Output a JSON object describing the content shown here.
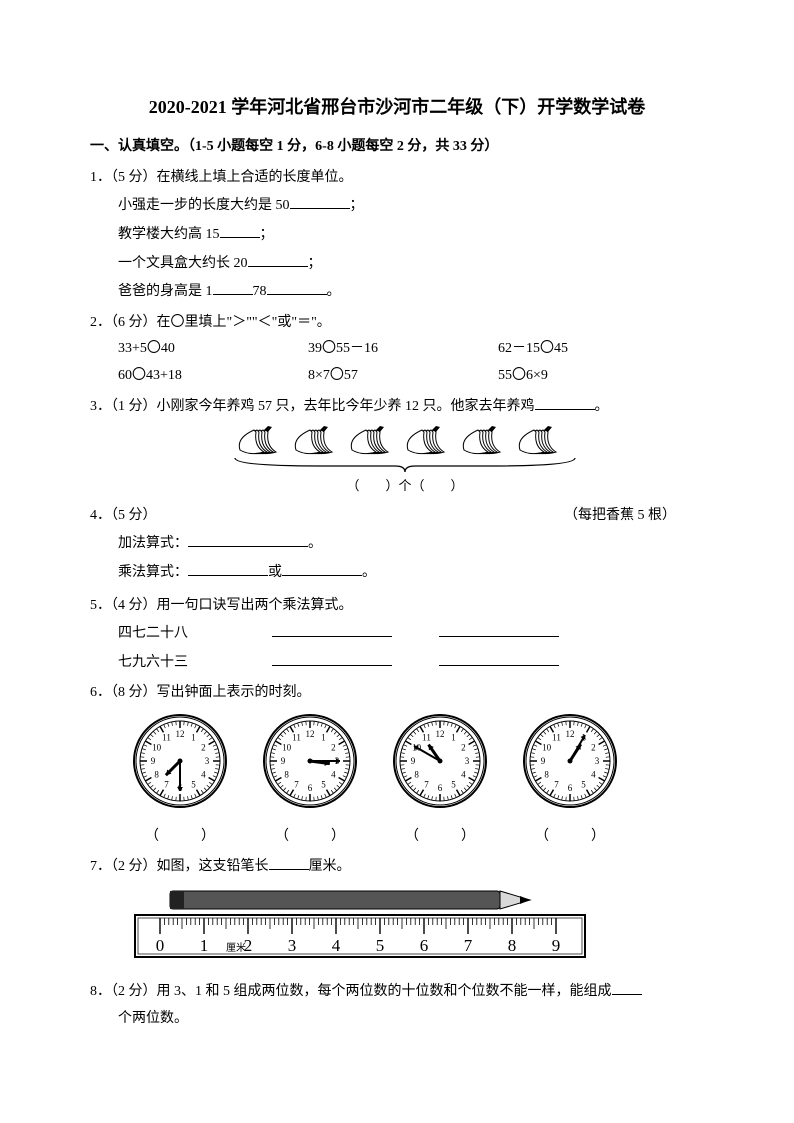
{
  "title": "2020-2021 学年河北省邢台市沙河市二年级（下）开学数学试卷",
  "section1": "一、认真填空。（1-5 小题每空 1 分，6-8 小题每空 2 分，共 33 分）",
  "q1": {
    "head": "1．（5 分）在横线上填上合适的长度单位。",
    "l1a": "小强走一步的长度大约是 50",
    "l1b": "；",
    "l2a": "教学楼大约高 15",
    "l2b": "；",
    "l3a": "一个文具盒大约长 20",
    "l3b": "；",
    "l4a": "爸爸的身高是 1",
    "l4b": "78",
    "l4c": "。"
  },
  "q2": {
    "head": "2．（6 分）在〇里填上\"＞\"\"＜\"或\"＝\"。",
    "r1": [
      "33+5〇40",
      "39〇55－16",
      "62－15〇45"
    ],
    "r2": [
      "60〇43+18",
      "8×7〇57",
      "55〇6×9"
    ]
  },
  "q3": {
    "head": "3．（1 分）小刚家今年养鸡 57 只，去年比今年少养 12 只。他家去年养鸡",
    "tail": "。"
  },
  "q4": {
    "brace": "（　　）个（　　）",
    "note": "（每把香蕉 5 根）",
    "head": "4．（5 分）",
    "l1": "加法算式：",
    "l1p": "。",
    "l2": "乘法算式：",
    "l2mid": "或",
    "l2p": "。"
  },
  "q5": {
    "head": "5．（4 分）用一句口诀写出两个乘法算式。",
    "a": "四七二十八",
    "b": "七九六十三"
  },
  "q6": {
    "head": "6．（8 分）写出钟面上表示的时刻。",
    "paren": "（　　　）"
  },
  "q7": {
    "head": "7．（2 分）如图，这支铅笔长",
    "unit": "厘米。"
  },
  "q8": {
    "pre": "8．（2 分）用 3、1 和 5 组成两位数，每个两位数的十位数和个位数不能一样，能组成",
    "post": "个两位数。"
  },
  "clocks": [
    {
      "h": 7,
      "m": 30
    },
    {
      "h": 3,
      "m": 15
    },
    {
      "h": 10,
      "m": 50
    },
    {
      "h": 1,
      "m": 5
    }
  ],
  "rulerNums": [
    "0",
    "1",
    "2",
    "3",
    "4",
    "5",
    "6",
    "7",
    "8",
    "9"
  ],
  "rulerUnit": "厘米",
  "colors": {
    "fg": "#000000",
    "bg": "#ffffff"
  }
}
